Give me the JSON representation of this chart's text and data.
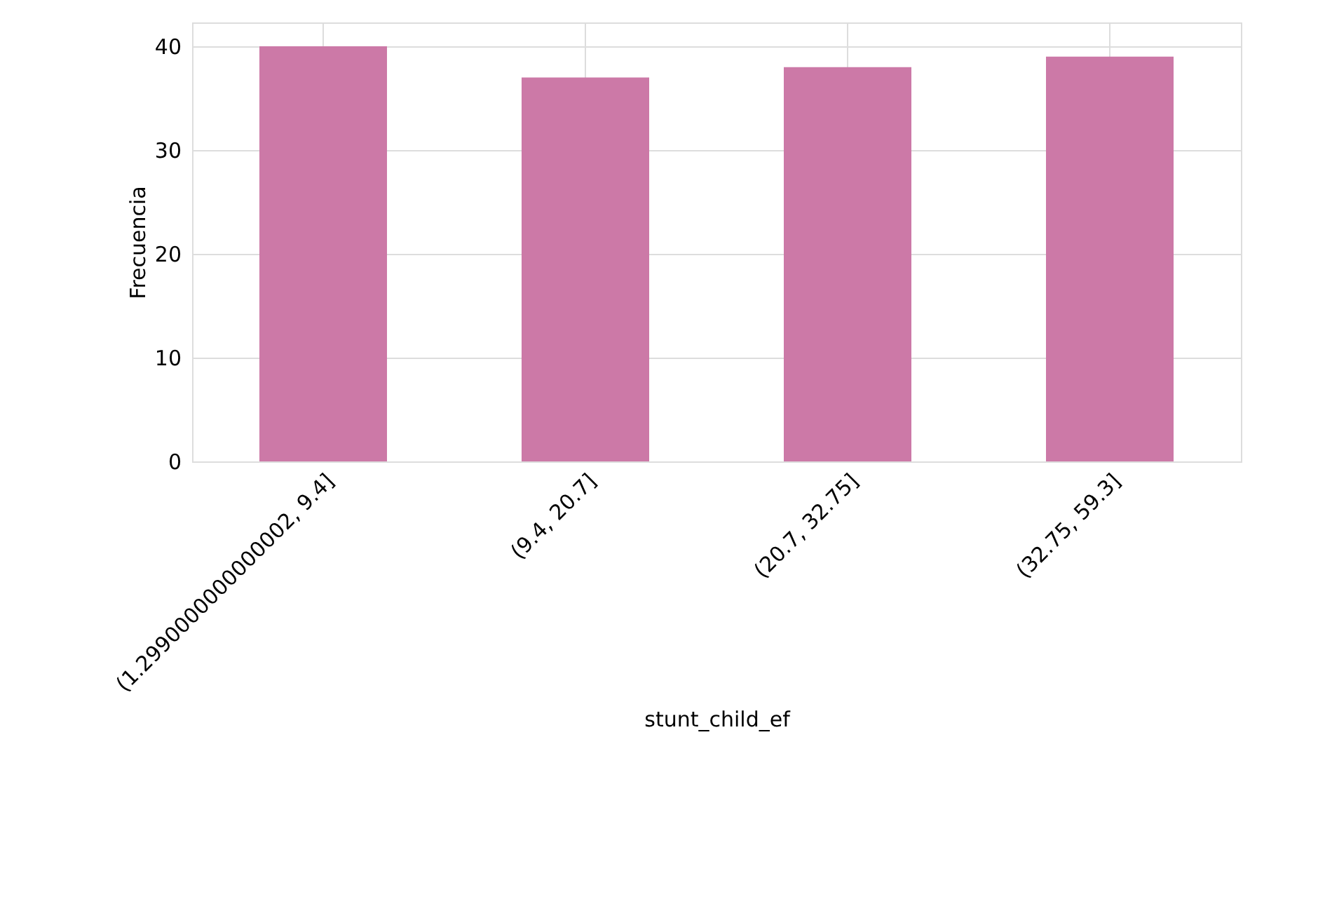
{
  "chart_data": {
    "type": "bar",
    "xlabel": "stunt_child_ef",
    "ylabel": "Frecuencia",
    "categories": [
      "(1.2990000000000002, 9.4]",
      "(9.4, 20.7]",
      "(20.7, 32.75]",
      "(32.75, 59.3]"
    ],
    "values": [
      40,
      37,
      38,
      39
    ],
    "color": "#cc79a7",
    "ylim": [
      0,
      42.3
    ],
    "yticks": [
      0,
      10,
      20,
      30,
      40
    ],
    "grid": true
  }
}
